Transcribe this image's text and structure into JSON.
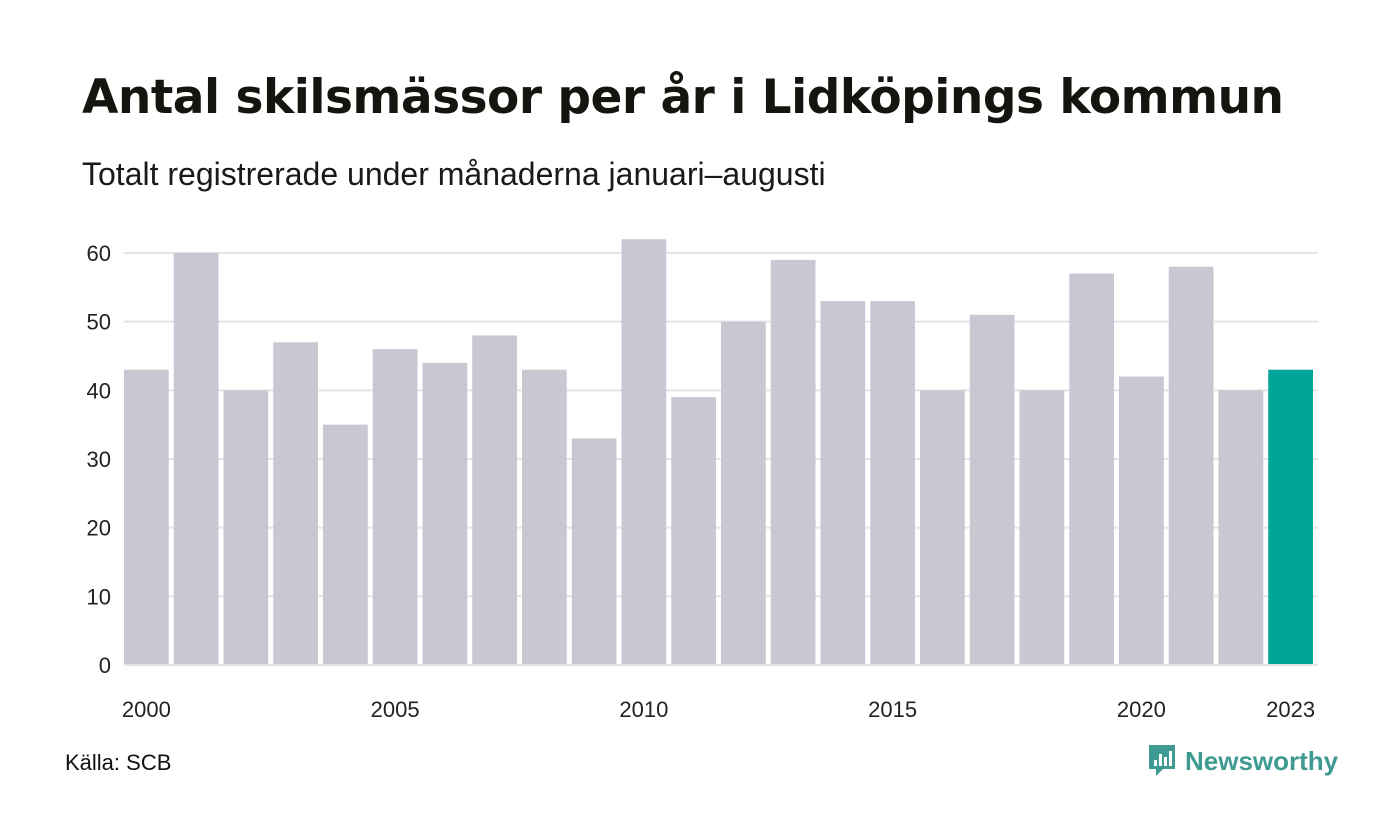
{
  "title": "Antal skilsmässor per år i Lidköpings kommun",
  "subtitle": "Totalt registrerade under månaderna januari–augusti",
  "source": "Källa: SCB",
  "logo_text": "Newsworthy",
  "colors": {
    "bar": "#c8c7d2",
    "highlight": "#00a599",
    "grid": "#e4e4e8",
    "axis_text": "#222222",
    "logo": "#3f9a92"
  },
  "chart_data": {
    "type": "bar",
    "categories": [
      2000,
      2001,
      2002,
      2003,
      2004,
      2005,
      2006,
      2007,
      2008,
      2009,
      2010,
      2011,
      2012,
      2013,
      2014,
      2015,
      2016,
      2017,
      2018,
      2019,
      2020,
      2021,
      2022,
      2023
    ],
    "values": [
      43,
      60,
      40,
      47,
      35,
      46,
      44,
      48,
      43,
      33,
      62,
      39,
      50,
      59,
      53,
      53,
      40,
      51,
      40,
      57,
      42,
      58,
      40,
      43
    ],
    "highlight_category": 2023,
    "x_tick_labels": [
      "2000",
      "2005",
      "2010",
      "2015",
      "2020",
      "2023"
    ],
    "y_ticks": [
      0,
      10,
      20,
      30,
      40,
      50,
      60
    ],
    "ylim": [
      0,
      62
    ],
    "grid": true,
    "legend": "none",
    "title": "Antal skilsmässor per år i Lidköpings kommun",
    "xlabel": "",
    "ylabel": ""
  }
}
